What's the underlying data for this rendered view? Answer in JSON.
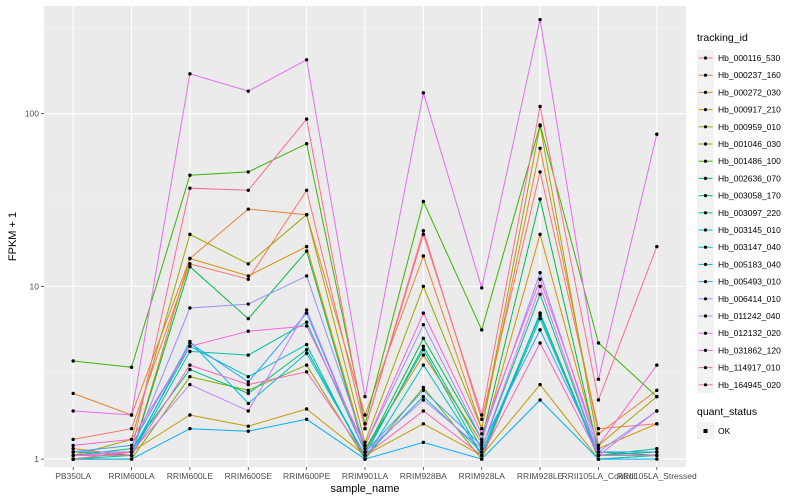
{
  "chart_data": {
    "type": "line",
    "xlabel": "sample_name",
    "ylabel": "FPKM + 1",
    "y_scale": "log10",
    "grid": true,
    "legend_placement": "right",
    "categories": [
      "PB350LA",
      "RRIM600LA",
      "RRIM600LE",
      "RRIM600SE",
      "RRIM600PE",
      "RRIM901LA",
      "RRIM928BA",
      "RRIM928LA",
      "RRIM928LE",
      "RRII105LA_Control",
      "RRII105LA_Stressed"
    ],
    "y_ticks": [
      1,
      10,
      100
    ],
    "y_tick_labels": [
      "1",
      "10",
      "100"
    ],
    "ylim": [
      0.9,
      420
    ],
    "legend_title": "tracking_id",
    "shape_legend_title": "quant_status",
    "shape_legend_items": [
      "OK"
    ],
    "series": [
      {
        "name": "Hb_000116_530",
        "color": "#F8766D",
        "values": [
          1.3,
          1.5,
          13.5,
          11,
          36,
          1.5,
          21,
          1.7,
          46,
          1.5,
          1.6
        ]
      },
      {
        "name": "Hb_000237_160",
        "color": "#EA8331",
        "values": [
          2.4,
          1.8,
          14.5,
          28,
          26,
          1.8,
          15,
          1.5,
          63,
          1.4,
          2.5
        ]
      },
      {
        "name": "Hb_000272_030",
        "color": "#D89000",
        "values": [
          1.15,
          1.05,
          14.5,
          11.5,
          17,
          1.15,
          4,
          1.25,
          20,
          1.15,
          1.6
        ]
      },
      {
        "name": "Hb_000917_210",
        "color": "#C09B00",
        "values": [
          1.0,
          1.1,
          1.8,
          1.55,
          1.95,
          1.05,
          1.6,
          1.05,
          2.7,
          1.0,
          1.05
        ]
      },
      {
        "name": "Hb_000959_010",
        "color": "#A3A500",
        "values": [
          1.05,
          1.3,
          20,
          13.5,
          26,
          1.25,
          10,
          1.5,
          85,
          1.2,
          2.3
        ]
      },
      {
        "name": "Hb_001046_030",
        "color": "#7CAE00",
        "values": [
          1.0,
          1.0,
          3.0,
          2.5,
          3.5,
          1.0,
          2.6,
          1.0,
          7,
          1.05,
          1.1
        ]
      },
      {
        "name": "Hb_001486_100",
        "color": "#39B600",
        "values": [
          3.7,
          3.4,
          44,
          46,
          67,
          1.6,
          31,
          5.6,
          86,
          4.7,
          2.3
        ]
      },
      {
        "name": "Hb_002636_070",
        "color": "#00BB4E",
        "values": [
          1.1,
          1.05,
          13,
          6.5,
          16,
          1.1,
          5,
          1.3,
          32,
          1.1,
          1.05
        ]
      },
      {
        "name": "Hb_003058_170",
        "color": "#00BF7D",
        "values": [
          1.05,
          1.15,
          3.3,
          2.4,
          4.3,
          1.05,
          4.5,
          1.15,
          9,
          1.05,
          1.15
        ]
      },
      {
        "name": "Hb_003097_220",
        "color": "#00C1A3",
        "values": [
          1.0,
          1.05,
          4.2,
          4.0,
          6.2,
          1.1,
          4.3,
          1.05,
          6.5,
          1.05,
          1.1
        ]
      },
      {
        "name": "Hb_003145_010",
        "color": "#00BFC4",
        "values": [
          1.0,
          1.1,
          4.5,
          3.0,
          4.6,
          1.0,
          3.5,
          1.05,
          7,
          1.0,
          1.05
        ]
      },
      {
        "name": "Hb_003147_040",
        "color": "#00BAE0",
        "values": [
          1.05,
          1.05,
          4.8,
          2.1,
          4.1,
          1.05,
          2.3,
          1.1,
          6.8,
          1.05,
          1.05
        ]
      },
      {
        "name": "Hb_005183_040",
        "color": "#00B0F6",
        "values": [
          1.0,
          1.0,
          1.5,
          1.45,
          1.7,
          1.0,
          1.25,
          1.0,
          2.2,
          1.0,
          1.0
        ]
      },
      {
        "name": "Hb_005493_010",
        "color": "#35A2FF",
        "values": [
          1.1,
          1.2,
          4.7,
          2.8,
          7.0,
          1.1,
          2.5,
          1.2,
          5.6,
          1.1,
          1.1
        ]
      },
      {
        "name": "Hb_006414_010",
        "color": "#9590FF",
        "values": [
          1.1,
          1.1,
          7.5,
          7.9,
          11.5,
          1.2,
          6,
          1.3,
          12,
          1.1,
          1.9
        ]
      },
      {
        "name": "Hb_011242_040",
        "color": "#C77CFF",
        "values": [
          1.05,
          1.1,
          2.7,
          1.9,
          7.3,
          1.1,
          2.2,
          1.15,
          10,
          1.05,
          1.9
        ]
      },
      {
        "name": "Hb_012132_020",
        "color": "#E76BF3",
        "values": [
          1.9,
          1.8,
          170,
          135,
          205,
          2.3,
          132,
          9.8,
          350,
          2.9,
          76
        ]
      },
      {
        "name": "Hb_031862_120",
        "color": "#FA62DB",
        "values": [
          1.2,
          1.3,
          4.5,
          5.5,
          5.9,
          1.2,
          7,
          1.4,
          11,
          1.2,
          3.5
        ]
      },
      {
        "name": "Hb_114917_010",
        "color": "#FF62BC",
        "values": [
          1.05,
          1.05,
          3.5,
          2.7,
          3.2,
          1.05,
          1.9,
          1.05,
          4.7,
          1.05,
          1.05
        ]
      },
      {
        "name": "Hb_164945_020",
        "color": "#FF6C91",
        "values": [
          1.0,
          1.1,
          37,
          36,
          93,
          1.5,
          20,
          1.8,
          110,
          2.2,
          17
        ]
      }
    ]
  }
}
